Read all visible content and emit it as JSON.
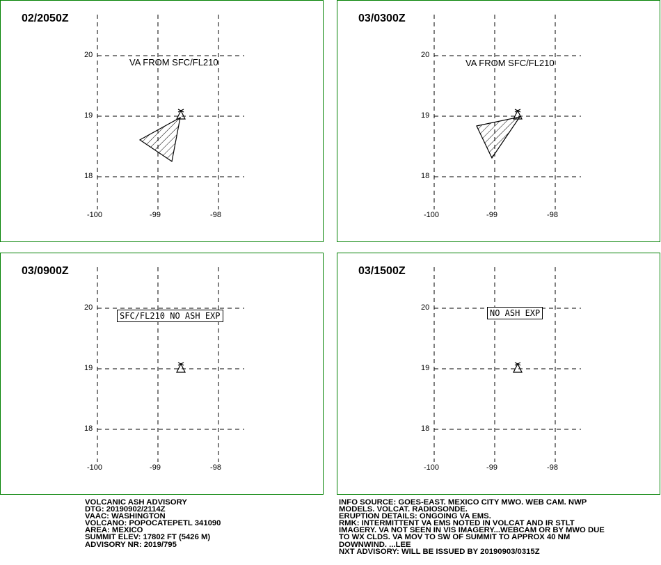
{
  "panels": [
    {
      "time": "02/2050Z",
      "label": "VA FROM SFC/FL210",
      "label_style": "plain"
    },
    {
      "time": "03/0300Z",
      "label": "VA FROM SFC/FL210",
      "label_style": "plain"
    },
    {
      "time": "03/0900Z",
      "label": "SFC/FL210 NO ASH EXP",
      "label_style": "boxed"
    },
    {
      "time": "03/1500Z",
      "label": "NO ASH EXP",
      "label_style": "boxed"
    }
  ],
  "axes": {
    "lat_labels": [
      "20",
      "19",
      "18"
    ],
    "lon_labels": [
      "-100",
      "-99",
      "-98"
    ]
  },
  "advisory_left": [
    "VOLCANIC ASH ADVISORY",
    "DTG: 20190902/2114Z",
    "VAAC: WASHINGTON",
    "VOLCANO: POPOCATEPETL 341090",
    "AREA: MEXICO",
    "SUMMIT ELEV: 17802 FT (5426 M)",
    "ADVISORY NR: 2019/795"
  ],
  "advisory_right": [
    "INFO SOURCE: GOES-EAST. MEXICO CITY MWO. WEB CAM. NWP",
    "MODELS. VOLCAT. RADIOSONDE.",
    "ERUPTION DETAILS: ONGOING VA EMS.",
    "RMK: INTERMITTENT VA EMS NOTED IN VOLCAT AND IR STLT",
    "IMAGERY. VA NOT SEEN IN VIS IMAGERY...WEBCAM OR BY MWO DUE",
    "TO WX CLDS. VA MOV TO SW OF SUMMIT TO APPROX 40 NM",
    "DOWNWIND. ...LEE",
    "NXT ADVISORY: WILL BE ISSUED BY 20190903/0315Z"
  ],
  "colors": {
    "panel_border": "#008000",
    "lines": "#000000"
  }
}
